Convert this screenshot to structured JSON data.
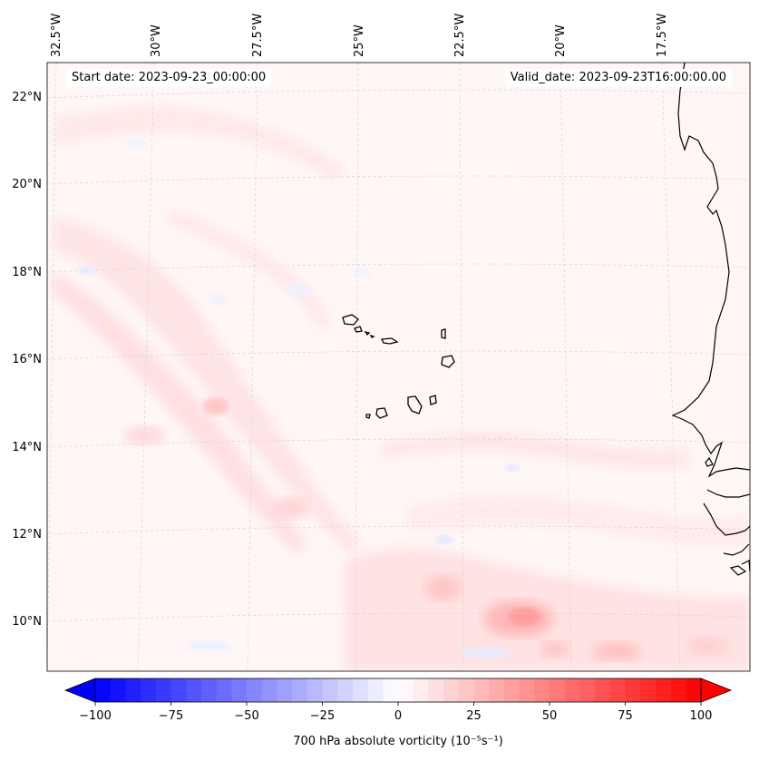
{
  "header": {
    "start_date": "Start date: 2023-09-23_00:00:00",
    "valid_date": "Valid_date: 2023-09-23T16:00:00.00"
  },
  "map": {
    "longitude_labels": [
      "32.5°W",
      "30°W",
      "27.5°W",
      "25°W",
      "22.5°W",
      "20°W",
      "17.5°W"
    ],
    "latitude_labels": [
      "22°N",
      "20°N",
      "18°N",
      "16°N",
      "14°N",
      "12°N",
      "10°N"
    ],
    "field": "700 hPa absolute vorticity"
  },
  "colorbar": {
    "label": "700 hPa absolute vorticity (10⁻⁵s⁻¹)",
    "ticks": [
      "−100",
      "−75",
      "−50",
      "−25",
      "0",
      "25",
      "50",
      "75",
      "100"
    ],
    "min": -100,
    "max": 100,
    "colors": {
      "low": "#0000ff",
      "mid": "#ffffff",
      "high": "#ff0000"
    }
  }
}
